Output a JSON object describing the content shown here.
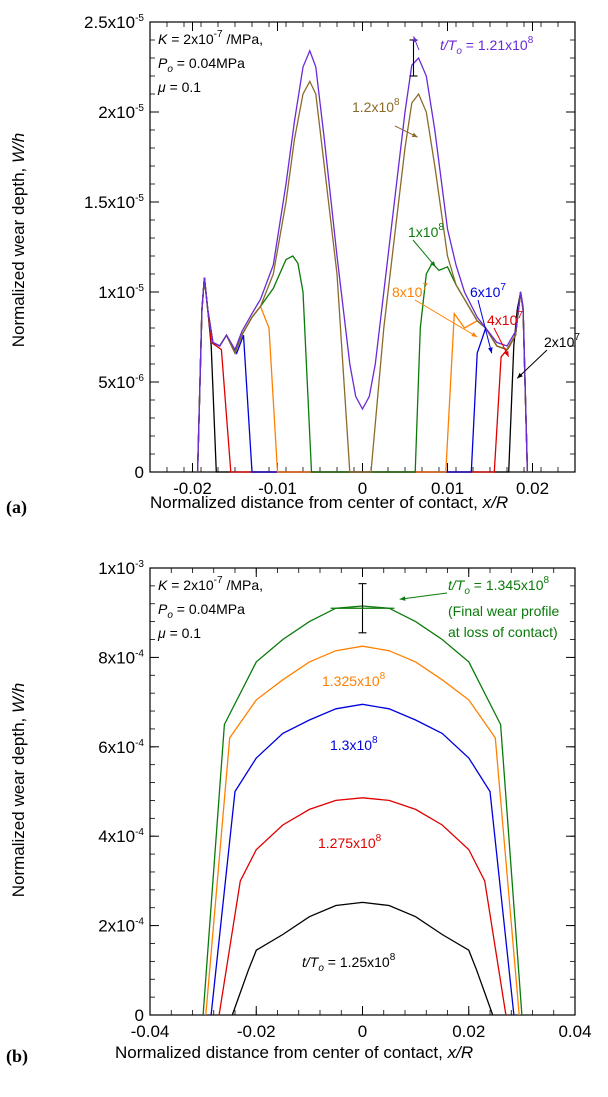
{
  "chart_data": [
    {
      "type": "line",
      "panel_label": "(a)",
      "xlabel": "Normalized distance from center of contact, x/R",
      "ylabel": "Normalized wear depth, W/h",
      "xlim": [
        -0.025,
        0.025
      ],
      "ylim": [
        0,
        2.5e-05
      ],
      "xticks": [
        -0.02,
        -0.01,
        0,
        0.01,
        0.02
      ],
      "xtick_labels": [
        "-0.02",
        "-0.01",
        "0",
        "0.01",
        "0.02"
      ],
      "yticks": [
        0,
        5e-06,
        1e-05,
        1.5e-05,
        2e-05,
        2.5e-05
      ],
      "ytick_labels": [
        "0",
        "5x10-6",
        "1x10-5",
        "1.5x10-5",
        "2x10-5",
        "2.5x10-5"
      ],
      "grid": false,
      "annotation": [
        "K = 2x10-7 /MPa,",
        "Po = 0.04MPa",
        "μ = 0.1"
      ],
      "series": [
        {
          "label": "2x10^7",
          "color": "#000000",
          "x": [
            -0.0194,
            -0.0189,
            -0.0186,
            -0.0182,
            -0.0178,
            -0.0172,
            0.0172,
            0.0178,
            0.0182,
            0.0186,
            0.0189,
            0.0194
          ],
          "y": [
            0,
            9e-06,
            1.08e-05,
            9e-06,
            7e-06,
            0,
            0,
            7e-06,
            9e-06,
            1e-05,
            9e-06,
            0
          ]
        },
        {
          "label": "4x10^7",
          "color": "#e00000",
          "x": [
            -0.0194,
            -0.0189,
            -0.0186,
            -0.0182,
            -0.0178,
            -0.0172,
            -0.0166,
            -0.0155,
            0.0155,
            0.0163,
            0.0172,
            0.018,
            0.0186,
            0.0189,
            0.0194
          ],
          "y": [
            0,
            9e-06,
            1.08e-05,
            9e-06,
            7.2e-06,
            7e-06,
            6.8e-06,
            0,
            0,
            6.4e-06,
            6.9e-06,
            7.6e-06,
            1e-05,
            9e-06,
            0
          ]
        },
        {
          "label": "6x10^7",
          "color": "#0000dd",
          "x": [
            -0.0194,
            -0.0189,
            -0.0186,
            -0.0182,
            -0.0176,
            -0.0168,
            -0.016,
            -0.0148,
            -0.014,
            -0.013,
            0.0128,
            0.0135,
            0.0145,
            0.0158,
            0.017,
            0.018,
            0.0186,
            0.0189,
            0.0194
          ],
          "y": [
            0,
            9e-06,
            1.08e-05,
            9e-06,
            7.2e-06,
            7e-06,
            7.6e-06,
            6.6e-06,
            7.6e-06,
            0,
            0,
            6.6e-06,
            8e-06,
            7e-06,
            6.8e-06,
            7.6e-06,
            1e-05,
            9e-06,
            0
          ]
        },
        {
          "label": "8x10^7",
          "color": "#ff8000",
          "x": [
            -0.0194,
            -0.0189,
            -0.0186,
            -0.0182,
            -0.0176,
            -0.0168,
            -0.016,
            -0.015,
            -0.0142,
            -0.013,
            -0.012,
            -0.011,
            -0.01,
            0.0098,
            0.0108,
            0.012,
            0.0135,
            0.0145,
            0.0158,
            0.017,
            0.018,
            0.0186,
            0.0189,
            0.0194
          ],
          "y": [
            0,
            9e-06,
            1.08e-05,
            9e-06,
            7.2e-06,
            7e-06,
            7.6e-06,
            6.6e-06,
            7.6e-06,
            8.6e-06,
            9.2e-06,
            8e-06,
            0,
            0,
            8.8e-06,
            8e-06,
            8.4e-06,
            8e-06,
            7e-06,
            6.8e-06,
            7.6e-06,
            1e-05,
            9e-06,
            0
          ]
        },
        {
          "label": "1x10^8",
          "color": "#0a7a0a",
          "x": [
            -0.0194,
            -0.0189,
            -0.0186,
            -0.0182,
            -0.0176,
            -0.0168,
            -0.016,
            -0.015,
            -0.0142,
            -0.013,
            -0.012,
            -0.0105,
            -0.009,
            -0.0082,
            -0.0076,
            -0.007,
            -0.006,
            0.0062,
            0.0068,
            0.0075,
            0.0082,
            0.009,
            0.01,
            0.011,
            0.012,
            0.0135,
            0.0145,
            0.0158,
            0.017,
            0.018,
            0.0186,
            0.0189,
            0.0194
          ],
          "y": [
            0,
            9e-06,
            1.08e-05,
            9e-06,
            7.2e-06,
            7e-06,
            7.6e-06,
            6.6e-06,
            7.6e-06,
            8.6e-06,
            9.2e-06,
            1.02e-05,
            1.18e-05,
            1.2e-05,
            1.16e-05,
            1e-05,
            0,
            0,
            8e-06,
            1.1e-05,
            1.16e-05,
            1.12e-05,
            1.14e-05,
            1.04e-05,
            9.6e-06,
            8.4e-06,
            8e-06,
            7e-06,
            6.8e-06,
            7.6e-06,
            1e-05,
            9e-06,
            0
          ]
        },
        {
          "label": "1.2x10^8",
          "color": "#8b6a2a",
          "x": [
            -0.0194,
            -0.0189,
            -0.0186,
            -0.0182,
            -0.0176,
            -0.0168,
            -0.016,
            -0.015,
            -0.0142,
            -0.013,
            -0.012,
            -0.0105,
            -0.009,
            -0.008,
            -0.007,
            -0.0062,
            -0.0055,
            -0.0045,
            -0.003,
            -0.0015,
            0.001,
            0.0025,
            0.004,
            0.005,
            0.0058,
            0.0066,
            0.0075,
            0.0085,
            0.01,
            0.011,
            0.012,
            0.0135,
            0.0145,
            0.0158,
            0.017,
            0.018,
            0.0186,
            0.0189,
            0.0194
          ],
          "y": [
            0,
            9e-06,
            1.08e-05,
            9e-06,
            7.2e-06,
            7e-06,
            7.6e-06,
            6.6e-06,
            7.6e-06,
            8.6e-06,
            9.2e-06,
            1.1e-05,
            1.5e-05,
            1.85e-05,
            2.1e-05,
            2.17e-05,
            2.1e-05,
            1.7e-05,
            1.1e-05,
            0,
            0,
            8e-06,
            1.4e-05,
            1.8e-05,
            2.05e-05,
            2.1e-05,
            2e-05,
            1.7e-05,
            1.2e-05,
            1.04e-05,
            9.6e-06,
            8.4e-06,
            8e-06,
            7e-06,
            6.8e-06,
            7.6e-06,
            1e-05,
            9e-06,
            0
          ]
        },
        {
          "label": "t/To = 1.21x10^8",
          "color": "#6a2ad8",
          "x": [
            -0.0194,
            -0.0189,
            -0.0186,
            -0.0182,
            -0.0176,
            -0.0168,
            -0.016,
            -0.015,
            -0.0142,
            -0.013,
            -0.012,
            -0.0105,
            -0.009,
            -0.008,
            -0.007,
            -0.0062,
            -0.0055,
            -0.0045,
            -0.003,
            -0.0015,
            -0.0008,
            0.0,
            0.0008,
            0.0015,
            0.0025,
            0.004,
            0.005,
            0.0058,
            0.0066,
            0.0075,
            0.0085,
            0.01,
            0.011,
            0.012,
            0.0135,
            0.0145,
            0.0158,
            0.017,
            0.018,
            0.0186,
            0.0189,
            0.0194
          ],
          "y": [
            0,
            9e-06,
            1.08e-05,
            9e-06,
            7.2e-06,
            7e-06,
            7.6e-06,
            6.8e-06,
            7.8e-06,
            8.8e-06,
            9.6e-06,
            1.15e-05,
            1.6e-05,
            1.95e-05,
            2.25e-05,
            2.34e-05,
            2.25e-05,
            1.85e-05,
            1.2e-05,
            6e-06,
            4.2e-06,
            3.5e-06,
            4.2e-06,
            6e-06,
            1e-05,
            1.6e-05,
            2e-05,
            2.26e-05,
            2.3e-05,
            2.2e-05,
            1.9e-05,
            1.35e-05,
            1.15e-05,
            1e-05,
            8.6e-06,
            8e-06,
            7.2e-06,
            7e-06,
            7.8e-06,
            1e-05,
            9.2e-06,
            0
          ]
        }
      ],
      "errorbar": {
        "x": 0.006,
        "y": 2.3e-05,
        "err": 1e-06
      },
      "curve_labels": [
        {
          "text": "t/To = 1.21x10^8",
          "color": "#6a2ad8"
        },
        {
          "text": "1.2x10^8",
          "color": "#8b6a2a"
        },
        {
          "text": "1x10^8",
          "color": "#0a7a0a"
        },
        {
          "text": "8x10^7",
          "color": "#ff8000"
        },
        {
          "text": "6x10^7",
          "color": "#0000dd"
        },
        {
          "text": "4x10^7",
          "color": "#e00000"
        },
        {
          "text": "2x10^7",
          "color": "#000000"
        }
      ]
    },
    {
      "type": "line",
      "panel_label": "(b)",
      "xlabel": "Normalized distance from center of contact, x/R",
      "ylabel": "Normalized wear depth, W/h",
      "xlim": [
        -0.04,
        0.04
      ],
      "ylim": [
        0,
        0.001
      ],
      "xticks": [
        -0.04,
        -0.02,
        0,
        0.02,
        0.04
      ],
      "xtick_labels": [
        "-0.04",
        "-0.02",
        "0",
        "0.02",
        "0.04"
      ],
      "yticks": [
        0,
        0.0002,
        0.0004,
        0.0006,
        0.0008,
        0.001
      ],
      "ytick_labels": [
        "0",
        "2x10-4",
        "4x10-4",
        "6x10-4",
        "8x10-4",
        "1x10-3"
      ],
      "grid": false,
      "annotation": [
        "K = 2x10-7 /MPa,",
        "Po = 0.04MPa",
        "μ = 0.1"
      ],
      "series": [
        {
          "label": "t/To = 1.25x10^8",
          "color": "#000000",
          "x": [
            -0.0245,
            -0.0215,
            -0.02,
            -0.015,
            -0.01,
            -0.005,
            0.0,
            0.005,
            0.01,
            0.015,
            0.02,
            0.0215,
            0.0245
          ],
          "y": [
            0,
            0.0001,
            0.000145,
            0.00018,
            0.00022,
            0.000245,
            0.000252,
            0.000245,
            0.00022,
            0.00018,
            0.000145,
            0.0001,
            0
          ]
        },
        {
          "label": "1.275x10^8",
          "color": "#e00000",
          "x": [
            -0.027,
            -0.023,
            -0.02,
            -0.015,
            -0.01,
            -0.005,
            0.0,
            0.005,
            0.01,
            0.015,
            0.02,
            0.023,
            0.027
          ],
          "y": [
            0,
            0.0003,
            0.00037,
            0.000425,
            0.00046,
            0.00048,
            0.000486,
            0.00048,
            0.00046,
            0.000425,
            0.00037,
            0.0003,
            0
          ]
        },
        {
          "label": "1.3x10^8",
          "color": "#0000dd",
          "x": [
            -0.0285,
            -0.024,
            -0.02,
            -0.015,
            -0.01,
            -0.005,
            0.0,
            0.005,
            0.01,
            0.015,
            0.02,
            0.024,
            0.0285
          ],
          "y": [
            0,
            0.0005,
            0.000575,
            0.00063,
            0.00066,
            0.000685,
            0.000695,
            0.000685,
            0.00066,
            0.00063,
            0.000575,
            0.0005,
            0
          ]
        },
        {
          "label": "1.325x10^8",
          "color": "#ff8000",
          "x": [
            -0.0295,
            -0.025,
            -0.02,
            -0.015,
            -0.01,
            -0.005,
            0.0,
            0.005,
            0.01,
            0.015,
            0.02,
            0.025,
            0.0295
          ],
          "y": [
            0,
            0.00062,
            0.000705,
            0.00075,
            0.00079,
            0.000815,
            0.000825,
            0.000815,
            0.00079,
            0.00075,
            0.000705,
            0.00062,
            0
          ]
        },
        {
          "label": "t/To = 1.345x10^8",
          "color": "#0a7a0a",
          "x": [
            -0.03,
            -0.026,
            -0.02,
            -0.015,
            -0.01,
            -0.005,
            0.0,
            0.005,
            0.01,
            0.015,
            0.02,
            0.026,
            0.03
          ],
          "y": [
            0,
            0.00065,
            0.00079,
            0.00084,
            0.00088,
            0.00091,
            0.000915,
            0.00091,
            0.00088,
            0.00084,
            0.00079,
            0.00065,
            0
          ]
        }
      ],
      "errorbar": {
        "x": 0.0,
        "y": 0.00091,
        "err": 5.5e-05
      },
      "curve_labels": [
        {
          "text": "t/To = 1.345x10^8",
          "color": "#0a7a0a"
        },
        {
          "text": "(Final wear profile",
          "color": "#0a7a0a"
        },
        {
          "text": "at loss of contact)",
          "color": "#0a7a0a"
        },
        {
          "text": "1.325x10^8",
          "color": "#ff8000"
        },
        {
          "text": "1.3x10^8",
          "color": "#0000dd"
        },
        {
          "text": "1.275x10^8",
          "color": "#e00000"
        },
        {
          "text": "t/To = 1.25x10^8",
          "color": "#000000"
        }
      ]
    }
  ]
}
